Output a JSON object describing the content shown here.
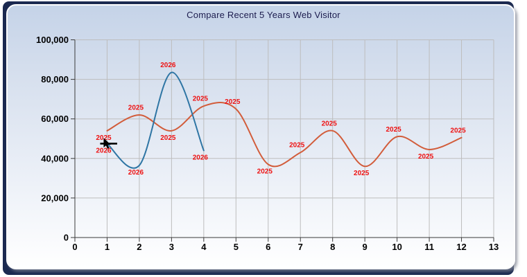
{
  "window": {
    "background_color": "#1b2950",
    "panel_border_color": "#fdfdfd",
    "panel_gradient_top": "#c5d3e8",
    "panel_gradient_bottom": "#ffffff"
  },
  "chart_data": {
    "type": "line",
    "curve": "spline",
    "title": "Compare Recent 5 Years Web Visitor",
    "title_color": "#1c1c4e",
    "xlabel": "",
    "ylabel": "",
    "xlim": [
      0,
      13
    ],
    "ylim": [
      0,
      100000
    ],
    "grid": true,
    "legend": "none",
    "grid_color": "#bdbdbd",
    "axis_color": "#3a3a3a",
    "tick_label_color": "#000000",
    "point_label_color": "#ee1111",
    "x_ticks": [
      0,
      1,
      2,
      3,
      4,
      5,
      6,
      7,
      8,
      9,
      10,
      11,
      12,
      13
    ],
    "y_ticks": [
      {
        "value": 0,
        "label": "0"
      },
      {
        "value": 20000,
        "label": "20,000"
      },
      {
        "value": 40000,
        "label": "40,000"
      },
      {
        "value": 60000,
        "label": "60,000"
      },
      {
        "value": 80000,
        "label": "80,000"
      },
      {
        "value": 100000,
        "label": "100,000"
      }
    ],
    "series": [
      {
        "name": "2025",
        "color": "#d25c3a",
        "points": [
          {
            "x": 1,
            "y": 54000,
            "label": "2025",
            "label_pos": "below"
          },
          {
            "x": 2,
            "y": 62000,
            "label": "2025",
            "label_pos": "above"
          },
          {
            "x": 3,
            "y": 54000,
            "label": "2025",
            "label_pos": "below"
          },
          {
            "x": 4,
            "y": 66500,
            "label": "2025",
            "label_pos": "above"
          },
          {
            "x": 5,
            "y": 65000,
            "label": "2025",
            "label_pos": "above"
          },
          {
            "x": 6,
            "y": 37000,
            "label": "2025",
            "label_pos": "below"
          },
          {
            "x": 7,
            "y": 43000,
            "label": "2025",
            "label_pos": "above"
          },
          {
            "x": 8,
            "y": 54000,
            "label": "2025",
            "label_pos": "above"
          },
          {
            "x": 9,
            "y": 36000,
            "label": "2025",
            "label_pos": "below"
          },
          {
            "x": 10,
            "y": 51000,
            "label": "2025",
            "label_pos": "above"
          },
          {
            "x": 11,
            "y": 44500,
            "label": "2025",
            "label_pos": "below"
          },
          {
            "x": 12,
            "y": 50500,
            "label": "2025",
            "label_pos": "above"
          }
        ]
      },
      {
        "name": "2026",
        "color": "#2e75a4",
        "points": [
          {
            "x": 1,
            "y": 47500,
            "label": "2026",
            "label_pos": "below"
          },
          {
            "x": 2,
            "y": 36500,
            "label": "2026",
            "label_pos": "below"
          },
          {
            "x": 3,
            "y": 83500,
            "label": "2026",
            "label_pos": "above"
          },
          {
            "x": 4,
            "y": 44000,
            "label": "2026",
            "label_pos": "below"
          }
        ]
      }
    ],
    "pointer": {
      "series": "2026",
      "x": 1,
      "y": 47500,
      "marker": "black-dash",
      "icon": "mouse-cursor-icon"
    }
  }
}
